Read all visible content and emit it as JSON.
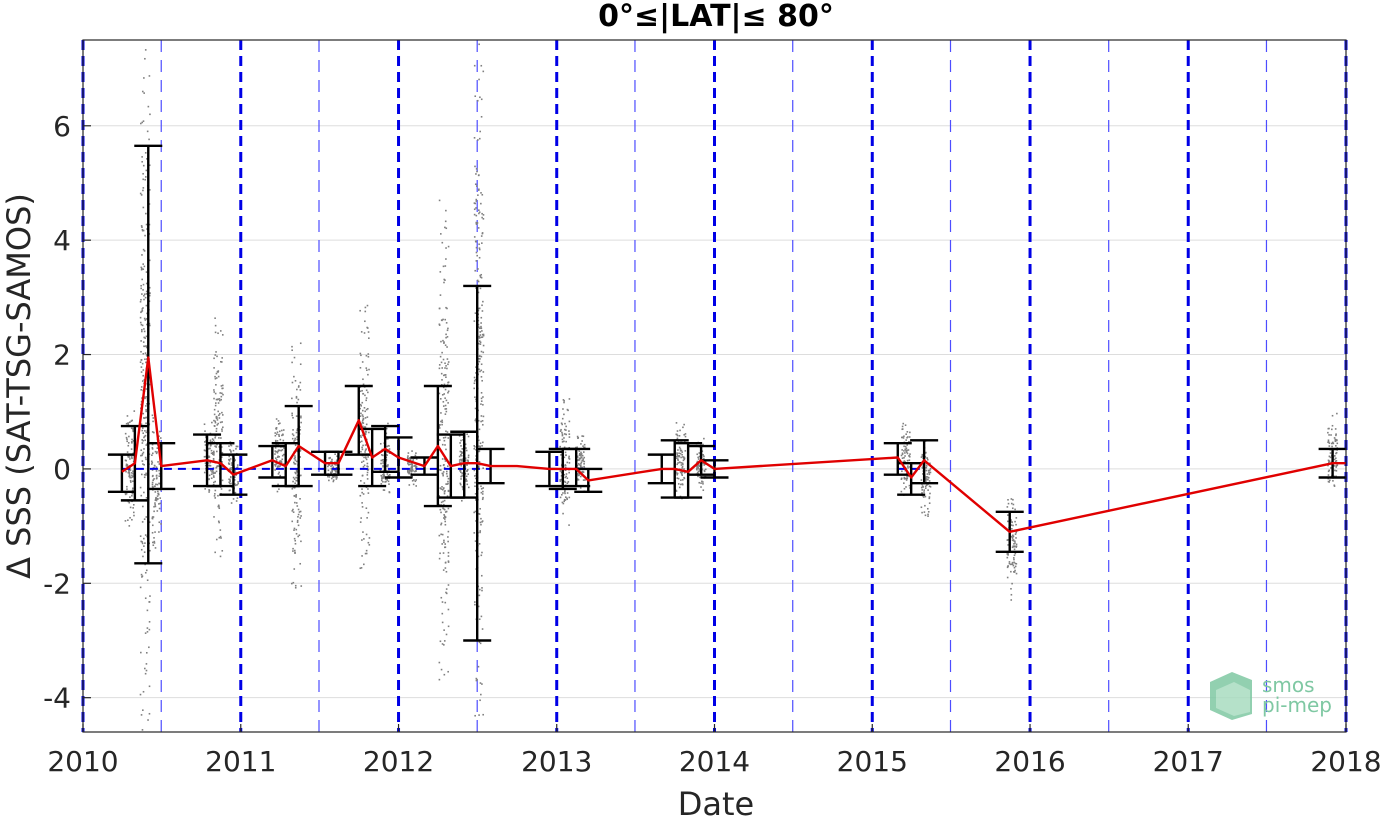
{
  "chart_data": {
    "type": "scatter",
    "title": "0°≤|LAT|≤ 80°",
    "xlabel": "Date",
    "ylabel": "Δ SSS (SAT-TSG-SAMOS)",
    "xlim": [
      "2010-01-01",
      "2018-01-01"
    ],
    "ylim": [
      -4.6,
      7.5
    ],
    "x_tick_labels": [
      "2010",
      "2011",
      "2012",
      "2013",
      "2014",
      "2015",
      "2016",
      "2017",
      "2018"
    ],
    "y_tick_labels": [
      "-4",
      "-2",
      "0",
      "2",
      "4",
      "6"
    ],
    "y_ticks": [
      -4,
      -2,
      0,
      2,
      4,
      6
    ],
    "grid": true,
    "year_lines_dates": [
      "2010-01-01",
      "2011-01-01",
      "2012-01-01",
      "2013-01-01",
      "2014-01-01",
      "2015-01-01",
      "2016-01-01",
      "2017-01-01",
      "2018-01-01"
    ],
    "half_year_lines_dates": [
      "2010-07-01",
      "2011-07-01",
      "2012-07-01",
      "2013-07-01",
      "2014-07-01",
      "2015-07-01",
      "2016-07-01",
      "2017-07-01"
    ],
    "series": [
      {
        "kind": "raw_points",
        "clusters": [
          {
            "date": "2010-04-20",
            "lo": -1.2,
            "hi": 1.2
          },
          {
            "date": "2010-05-25",
            "lo": -4.6,
            "hi": 7.5
          },
          {
            "date": "2010-06-20",
            "lo": -1.5,
            "hi": 1.0
          },
          {
            "date": "2010-10-20",
            "lo": -0.6,
            "hi": 1.0
          },
          {
            "date": "2010-11-10",
            "lo": -1.8,
            "hi": 2.8
          },
          {
            "date": "2010-12-15",
            "lo": -0.6,
            "hi": 0.6
          },
          {
            "date": "2011-04-01",
            "lo": -0.4,
            "hi": 1.0
          },
          {
            "date": "2011-05-10",
            "lo": -2.2,
            "hi": 2.2
          },
          {
            "date": "2011-08-01",
            "lo": -0.3,
            "hi": 0.3
          },
          {
            "date": "2011-10-15",
            "lo": -1.8,
            "hi": 2.9
          },
          {
            "date": "2011-12-01",
            "lo": -0.5,
            "hi": 0.8
          },
          {
            "date": "2012-02-01",
            "lo": -0.3,
            "hi": 0.4
          },
          {
            "date": "2012-04-15",
            "lo": -3.8,
            "hi": 4.7
          },
          {
            "date": "2012-06-01",
            "lo": -0.6,
            "hi": 0.7
          },
          {
            "date": "2012-07-05",
            "lo": -4.6,
            "hi": 7.5
          },
          {
            "date": "2013-01-20",
            "lo": -1.0,
            "hi": 1.3
          },
          {
            "date": "2013-02-25",
            "lo": -0.4,
            "hi": 0.6
          },
          {
            "date": "2013-10-15",
            "lo": -0.7,
            "hi": 1.0
          },
          {
            "date": "2013-12-01",
            "lo": -0.5,
            "hi": 0.6
          },
          {
            "date": "2015-03-20",
            "lo": -0.5,
            "hi": 0.8
          },
          {
            "date": "2015-05-05",
            "lo": -1.0,
            "hi": 0.5
          },
          {
            "date": "2015-11-20",
            "lo": -2.3,
            "hi": -0.4
          },
          {
            "date": "2017-12-01",
            "lo": -0.5,
            "hi": 1.0
          }
        ]
      },
      {
        "kind": "monthly_mean_with_errorbars",
        "points": [
          {
            "date": "2010-04-01",
            "y": -0.05,
            "lo": -0.4,
            "hi": 0.25
          },
          {
            "date": "2010-05-01",
            "y": 0.1,
            "lo": -0.55,
            "hi": 0.75
          },
          {
            "date": "2010-06-01",
            "y": 1.95,
            "lo": -1.65,
            "hi": 5.65
          },
          {
            "date": "2010-07-01",
            "y": 0.05,
            "lo": -0.35,
            "hi": 0.45
          },
          {
            "date": "2010-10-15",
            "y": 0.15,
            "lo": -0.3,
            "hi": 0.6
          },
          {
            "date": "2010-11-15",
            "y": 0.1,
            "lo": -0.3,
            "hi": 0.45
          },
          {
            "date": "2010-12-15",
            "y": -0.1,
            "lo": -0.45,
            "hi": 0.25
          },
          {
            "date": "2011-03-15",
            "y": 0.15,
            "lo": -0.15,
            "hi": 0.4
          },
          {
            "date": "2011-04-15",
            "y": 0.05,
            "lo": -0.3,
            "hi": 0.45
          },
          {
            "date": "2011-05-15",
            "y": 0.4,
            "lo": -0.3,
            "hi": 1.1
          },
          {
            "date": "2011-07-15",
            "y": 0.1,
            "lo": -0.1,
            "hi": 0.3
          },
          {
            "date": "2011-08-15",
            "y": 0.1,
            "lo": -0.1,
            "hi": 0.3
          },
          {
            "date": "2011-10-01",
            "y": 0.85,
            "lo": 0.25,
            "hi": 1.45
          },
          {
            "date": "2011-11-01",
            "y": 0.2,
            "lo": -0.3,
            "hi": 0.7
          },
          {
            "date": "2011-12-01",
            "y": 0.35,
            "lo": -0.05,
            "hi": 0.75
          },
          {
            "date": "2012-01-01",
            "y": 0.2,
            "lo": -0.15,
            "hi": 0.55
          },
          {
            "date": "2012-03-01",
            "y": 0.05,
            "lo": -0.1,
            "hi": 0.2
          },
          {
            "date": "2012-04-01",
            "y": 0.4,
            "lo": -0.65,
            "hi": 1.45
          },
          {
            "date": "2012-05-01",
            "y": 0.05,
            "lo": -0.5,
            "hi": 0.6
          },
          {
            "date": "2012-06-01",
            "y": 0.1,
            "lo": -0.5,
            "hi": 0.65
          },
          {
            "date": "2012-07-01",
            "y": 0.1,
            "lo": -3.0,
            "hi": 3.2
          },
          {
            "date": "2012-08-01",
            "y": 0.05,
            "lo": -0.25,
            "hi": 0.35
          },
          {
            "date": "2012-10-01",
            "y": 0.05,
            "lo": 0.05,
            "hi": 0.05
          },
          {
            "date": "2012-12-15",
            "y": 0.0,
            "lo": -0.3,
            "hi": 0.3
          },
          {
            "date": "2013-01-15",
            "y": 0.0,
            "lo": -0.35,
            "hi": 0.35
          },
          {
            "date": "2013-02-15",
            "y": 0.0,
            "lo": -0.3,
            "hi": 0.35
          },
          {
            "date": "2013-03-15",
            "y": -0.2,
            "lo": -0.4,
            "hi": 0.0
          },
          {
            "date": "2013-09-01",
            "y": 0.0,
            "lo": -0.25,
            "hi": 0.25
          },
          {
            "date": "2013-10-01",
            "y": 0.0,
            "lo": -0.5,
            "hi": 0.5
          },
          {
            "date": "2013-11-01",
            "y": -0.05,
            "lo": -0.5,
            "hi": 0.45
          },
          {
            "date": "2013-12-01",
            "y": 0.15,
            "lo": -0.1,
            "hi": 0.4
          },
          {
            "date": "2014-01-01",
            "y": 0.0,
            "lo": -0.15,
            "hi": 0.15
          },
          {
            "date": "2015-03-01",
            "y": 0.2,
            "lo": -0.1,
            "hi": 0.45
          },
          {
            "date": "2015-04-01",
            "y": -0.15,
            "lo": -0.45,
            "hi": 0.1
          },
          {
            "date": "2015-05-01",
            "y": 0.15,
            "lo": -0.25,
            "hi": 0.5
          },
          {
            "date": "2015-11-15",
            "y": -1.1,
            "lo": -1.45,
            "hi": -0.75
          },
          {
            "date": "2017-12-01",
            "y": 0.1,
            "lo": -0.15,
            "hi": 0.35
          },
          {
            "date": "2018-01-01",
            "y": 0.1,
            "lo": 0.1,
            "hi": 0.1
          }
        ]
      }
    ],
    "zero_line_segments": [
      [
        "2010-04-01",
        "2012-08-01"
      ],
      [
        "2012-12-15",
        "2013-03-15"
      ],
      [
        "2015-03-01",
        "2015-05-01"
      ]
    ],
    "colors": {
      "raw_points": "#808080",
      "mean_line": "#e00000",
      "error_bars": "#000000",
      "year_lines": "#0000e6",
      "half_year_lines": "#4d4dff",
      "grid": "#dddddd"
    }
  },
  "logo": {
    "line1": "smos",
    "line2": "pi-mep"
  }
}
